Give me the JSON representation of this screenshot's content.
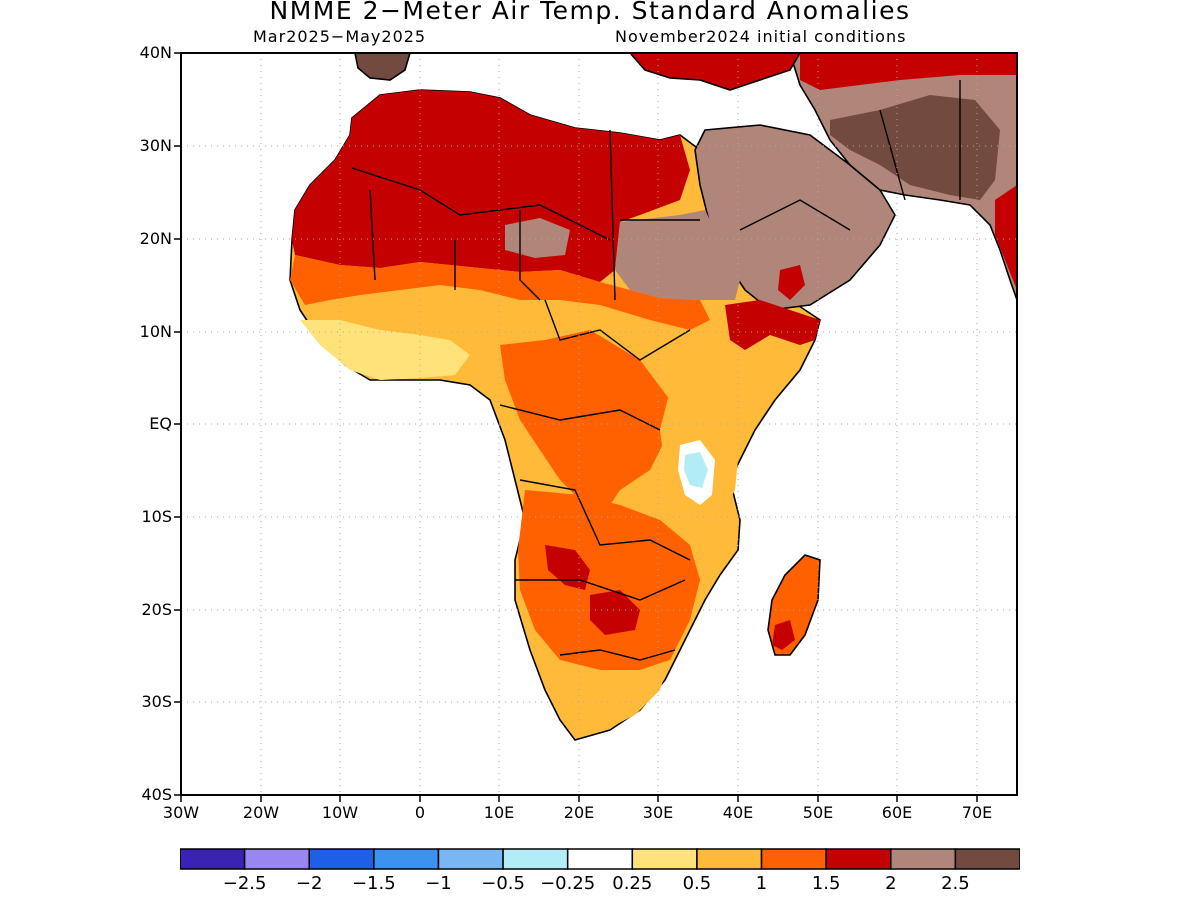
{
  "title": "NMME 2−Meter Air Temp. Standard Anomalies",
  "period": "Mar2025−May2025",
  "initial_conditions": "November2024 initial conditions",
  "lat_ticks": [
    "40N",
    "30N",
    "20N",
    "10N",
    "EQ",
    "10S",
    "20S",
    "30S",
    "40S"
  ],
  "lon_ticks": [
    "30W",
    "20W",
    "10W",
    "0",
    "10E",
    "20E",
    "30E",
    "40E",
    "50E",
    "60E",
    "70E"
  ],
  "legend": {
    "colors": [
      "#3a22b4",
      "#9a86f2",
      "#1e5fe8",
      "#3c92f0",
      "#78b6f4",
      "#b2ecf6",
      "#ffffff",
      "#ffe27a",
      "#ffba3a",
      "#ff6000",
      "#c40000",
      "#b0857a",
      "#734a40"
    ],
    "labels": [
      "−2.5",
      "−2",
      "−1.5",
      "−1",
      "−0.5",
      "−0.25",
      "0.25",
      "0.5",
      "1",
      "1.5",
      "2",
      "2.5"
    ]
  }
}
